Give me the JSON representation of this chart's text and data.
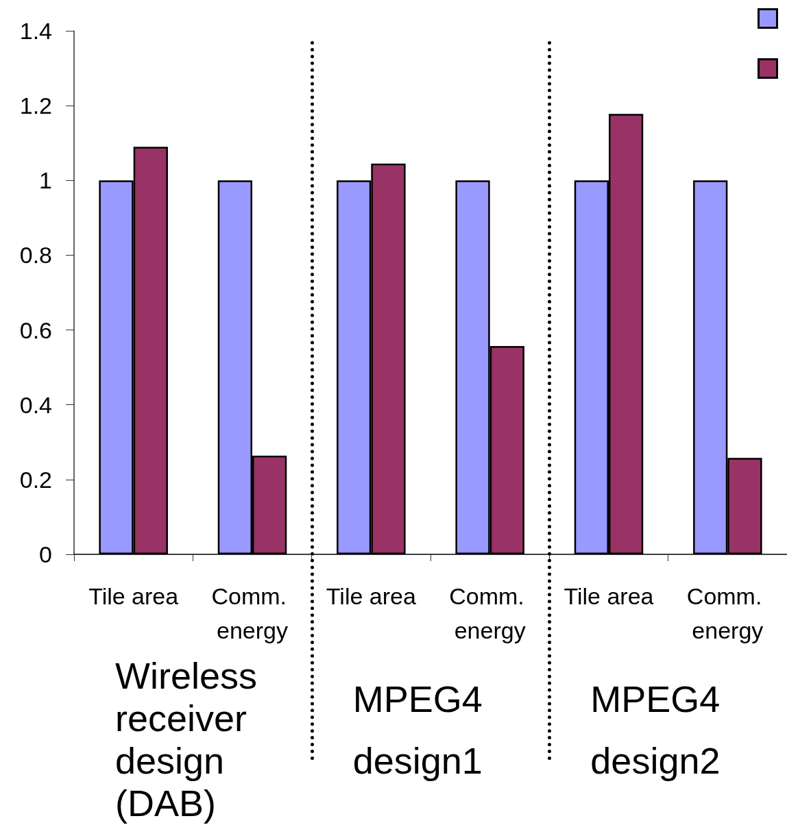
{
  "chart_data": {
    "type": "bar",
    "categories": [
      "Tile area",
      "Comm. energy",
      "Tile area",
      "Comm. energy",
      "Tile area",
      "Comm. energy"
    ],
    "series": [
      {
        "color": "#9999ff",
        "values": [
          1,
          1,
          1,
          1,
          1,
          1
        ]
      },
      {
        "color": "#993366",
        "values": [
          1.09,
          0.264,
          1.045,
          0.557,
          1.178,
          0.258
        ]
      }
    ],
    "ylim": [
      0,
      1.4
    ],
    "yticks": [
      0,
      0.2,
      0.4,
      0.6,
      0.8,
      1,
      1.2,
      1.4
    ],
    "grid": false,
    "annotations": [
      "Wireless receiver design (DAB)",
      "MPEG4 design1",
      "MPEG4 design2"
    ]
  }
}
